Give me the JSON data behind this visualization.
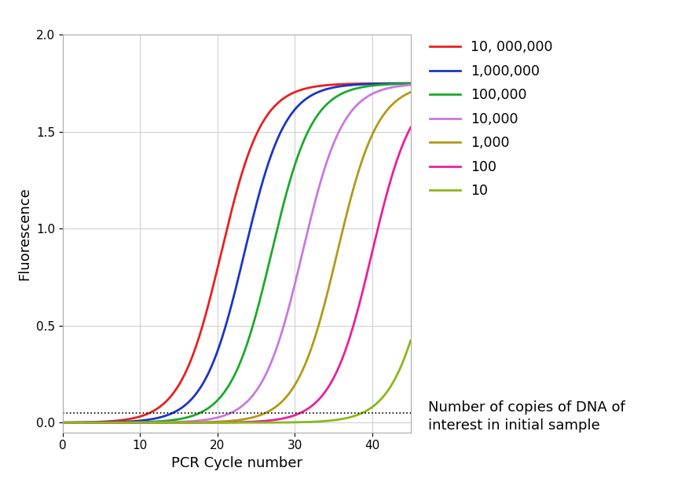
{
  "series": [
    {
      "label": "10, 000,000",
      "color": "#e8201e",
      "midpoint": 20.5,
      "k": 0.38
    },
    {
      "label": "1,000,000",
      "color": "#1a35c8",
      "midpoint": 23.5,
      "k": 0.38
    },
    {
      "label": "100,000",
      "color": "#1aaa2a",
      "midpoint": 27.0,
      "k": 0.38
    },
    {
      "label": "10,000",
      "color": "#c878e0",
      "midpoint": 31.0,
      "k": 0.38
    },
    {
      "label": "1,000",
      "color": "#b09a18",
      "midpoint": 35.5,
      "k": 0.38
    },
    {
      "label": "100",
      "color": "#e8209a",
      "midpoint": 40.0,
      "k": 0.38
    },
    {
      "label": "10",
      "color": "#8ab818",
      "midpoint": 48.0,
      "k": 0.38
    }
  ],
  "x_min": 0,
  "x_max": 45,
  "y_min": -0.05,
  "y_max_display": 2.0,
  "y_saturation": 1.75,
  "threshold": 0.05,
  "xlabel": "PCR Cycle number",
  "ylabel": "Fluorescence",
  "legend_title_line1": "Number of copies of DNA of",
  "legend_title_line2": "interest in initial sample",
  "x_ticks": [
    0,
    10,
    20,
    30,
    40
  ],
  "y_ticks": [
    0,
    0.5,
    1,
    1.5,
    2
  ],
  "background_color": "#ffffff",
  "grid_color": "#cccccc",
  "xlabel_fontsize": 13,
  "ylabel_fontsize": 13,
  "tick_fontsize": 11,
  "legend_fontsize": 12.5,
  "legend_title_fontsize": 13
}
